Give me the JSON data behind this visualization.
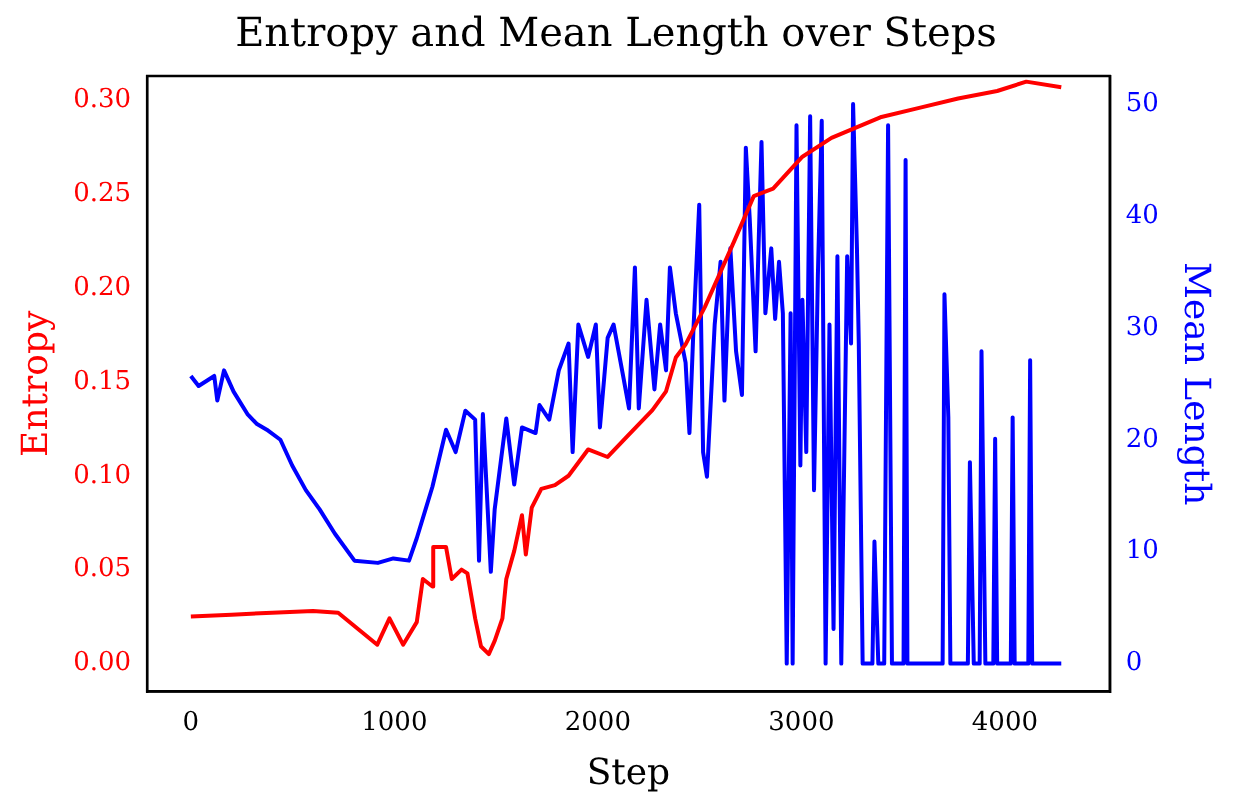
{
  "chart_data": {
    "type": "line",
    "title": "Entropy and Mean Length over Steps",
    "xlabel": "Step",
    "ylabel": "Entropy",
    "y2label": "Mean Length",
    "xlim": [
      -215,
      4515
    ],
    "xticks": [
      0,
      1000,
      2000,
      3000,
      4000
    ],
    "ylim": [
      -0.015,
      0.313
    ],
    "yticks": [
      {
        "value": 0,
        "label": "0.00"
      },
      {
        "value": 0.05,
        "label": "0.05"
      },
      {
        "value": 0.1,
        "label": "0.10"
      },
      {
        "value": 0.15,
        "label": "0.15"
      },
      {
        "value": 0.2,
        "label": "0.20"
      },
      {
        "value": 0.25,
        "label": "0.25"
      },
      {
        "value": 0.3,
        "label": "0.30"
      }
    ],
    "y2lim": [
      -2.5,
      52.5
    ],
    "y2ticks": [
      0,
      10,
      20,
      30,
      40,
      50
    ],
    "grid": false,
    "legend": false,
    "marker": "none",
    "line_style": "solid",
    "series": [
      {
        "color": "#ff0000",
        "axis": "y",
        "x": [
          0,
          200,
          400,
          600,
          724,
          916,
          976,
          1043,
          1110,
          1140,
          1187,
          1191,
          1254,
          1282,
          1330,
          1359,
          1397,
          1426,
          1464,
          1493,
          1531,
          1550,
          1589,
          1627,
          1646,
          1675,
          1722,
          1789,
          1856,
          1952,
          2048,
          2144,
          2268,
          2335,
          2383,
          2431,
          2526,
          2670,
          2766,
          2861,
          3005,
          3148,
          3388,
          3579,
          3770,
          3962,
          4105,
          4277
        ],
        "values": [
          0.025,
          0.026,
          0.027,
          0.028,
          0.027,
          0.01,
          0.024,
          0.01,
          0.022,
          0.045,
          0.041,
          0.062,
          0.062,
          0.045,
          0.05,
          0.048,
          0.024,
          0.009,
          0.005,
          0.012,
          0.024,
          0.045,
          0.06,
          0.079,
          0.058,
          0.083,
          0.093,
          0.095,
          0.1,
          0.114,
          0.11,
          0.121,
          0.135,
          0.145,
          0.163,
          0.17,
          0.19,
          0.225,
          0.249,
          0.253,
          0.27,
          0.28,
          0.291,
          0.296,
          0.301,
          0.305,
          0.31,
          0.307
        ]
      },
      {
        "color": "#0000ff",
        "axis": "y2",
        "x": [
          0,
          38,
          115,
          130,
          163,
          210,
          278,
          325,
          373,
          440,
          498,
          565,
          632,
          708,
          804,
          919,
          995,
          1072,
          1110,
          1187,
          1254,
          1301,
          1349,
          1397,
          1416,
          1435,
          1474,
          1493,
          1550,
          1589,
          1627,
          1694,
          1713,
          1761,
          1808,
          1856,
          1876,
          1904,
          1952,
          1990,
          2010,
          2048,
          2077,
          2124,
          2153,
          2182,
          2201,
          2239,
          2278,
          2306,
          2335,
          2354,
          2383,
          2431,
          2450,
          2469,
          2498,
          2517,
          2536,
          2574,
          2603,
          2622,
          2651,
          2679,
          2708,
          2727,
          2746,
          2775,
          2804,
          2823,
          2852,
          2871,
          2890,
          2909,
          2928,
          2947,
          2957,
          2976,
          2995,
          3005,
          3024,
          3043,
          3062,
          3081,
          3100,
          3119,
          3138,
          3158,
          3177,
          3196,
          3225,
          3244,
          3254,
          3273,
          3282,
          3301,
          3349,
          3359,
          3378,
          3407,
          3426,
          3445,
          3502,
          3512,
          3521,
          3694,
          3703,
          3722,
          3732,
          3818,
          3828,
          3847,
          3876,
          3885,
          3904,
          3943,
          3952,
          3962,
          4029,
          4038,
          4048,
          4115,
          4124,
          4134,
          4277
        ],
        "values": [
          25.7,
          24.8,
          25.7,
          23.5,
          26.2,
          24.3,
          22.3,
          21.4,
          20.9,
          20,
          17.7,
          15.5,
          13.8,
          11.6,
          9.2,
          9,
          9.4,
          9.2,
          11.2,
          15.8,
          20.9,
          18.9,
          22.6,
          21.8,
          9.2,
          22.3,
          8.2,
          13.8,
          21.9,
          16,
          21.1,
          20.6,
          23.1,
          21.8,
          26.2,
          28.6,
          18.9,
          30.3,
          27.4,
          30.3,
          21.1,
          29.1,
          30.3,
          25.7,
          22.8,
          35.4,
          22.8,
          32.5,
          24.5,
          30.3,
          26.2,
          35.4,
          31.3,
          26.9,
          20.6,
          29.6,
          41,
          18.9,
          16.7,
          30.3,
          35.9,
          23.5,
          37.1,
          27.9,
          24,
          46.1,
          39.8,
          27.9,
          46.6,
          31.3,
          37.1,
          30.8,
          35.9,
          31.3,
          0,
          31.3,
          0,
          48.1,
          17.7,
          32.5,
          18.9,
          48.9,
          15.5,
          34.7,
          48.5,
          0,
          30.3,
          3.1,
          36.4,
          0,
          36.4,
          28.6,
          50,
          37.1,
          28.6,
          0,
          0,
          10.9,
          0,
          0,
          48.1,
          0,
          0,
          45,
          0,
          0,
          33,
          22,
          0,
          0,
          18,
          0,
          0,
          27.9,
          0,
          0,
          20.1,
          0,
          0,
          22,
          0,
          0,
          27.1,
          0,
          0
        ]
      }
    ]
  }
}
